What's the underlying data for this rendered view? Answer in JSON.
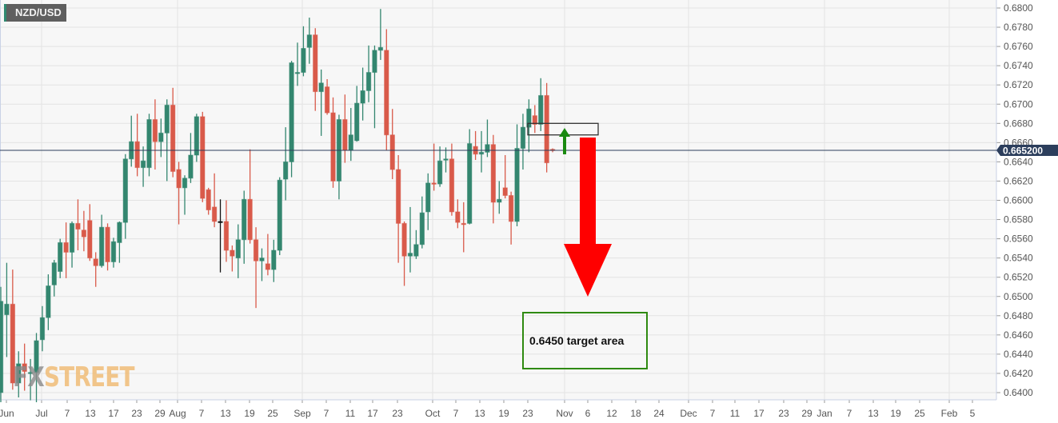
{
  "symbol": "NZD/USD",
  "current_price_label": "0.665200",
  "annotation_text": "0.6450 target area",
  "watermark": {
    "prefix": "FX",
    "suffix": "STREET"
  },
  "colors": {
    "up": "#33866f",
    "down": "#d95a4a",
    "doji": "#111111",
    "price_line": "#2c3e5c",
    "price_label_bg": "#2c3e5c",
    "zone_box": "#333333",
    "up_arrow": "#1a8a10",
    "down_arrow": "#ff0000",
    "target_box": "#2f8a10",
    "grid": "#e3e3e3",
    "plot_bg": "#f7f7f7"
  },
  "chart_data": {
    "type": "candlestick",
    "title": "NZD/USD",
    "timeframe_note": "",
    "ylim": [
      0.639,
      0.681
    ],
    "yticks": [
      "0.6400",
      "0.6420",
      "0.6440",
      "0.6460",
      "0.6480",
      "0.6500",
      "0.6520",
      "0.6540",
      "0.6560",
      "0.6580",
      "0.6600",
      "0.6620",
      "0.6640",
      "0.6660",
      "0.6680",
      "0.6700",
      "0.6720",
      "0.6740",
      "0.6760",
      "0.6780",
      "0.6800"
    ],
    "xticks": [
      "Jun",
      "Jul",
      "7",
      "13",
      "17",
      "23",
      "29",
      "Aug",
      "7",
      "13",
      "19",
      "25",
      "Sep",
      "7",
      "11",
      "17",
      "23",
      "Oct",
      "7",
      "13",
      "19",
      "23",
      "Nov",
      "6",
      "12",
      "18",
      "24",
      "Dec",
      "7",
      "11",
      "17",
      "23",
      "29",
      "Jan",
      "7",
      "13",
      "19",
      "25",
      "Feb",
      "5"
    ],
    "grid": true,
    "current_price": 0.6652,
    "ohlc": [
      [
        0.64,
        0.651,
        0.639,
        0.6495
      ],
      [
        0.6481,
        0.6535,
        0.6437,
        0.6492
      ],
      [
        0.6492,
        0.6528,
        0.6403,
        0.641
      ],
      [
        0.641,
        0.6443,
        0.6395,
        0.643
      ],
      [
        0.643,
        0.6451,
        0.6402,
        0.6422
      ],
      [
        0.642,
        0.6435,
        0.6392,
        0.6421
      ],
      [
        0.6421,
        0.6462,
        0.639,
        0.6454
      ],
      [
        0.6455,
        0.649,
        0.6443,
        0.6478
      ],
      [
        0.6478,
        0.6523,
        0.6465,
        0.6511
      ],
      [
        0.6512,
        0.6538,
        0.65,
        0.6535
      ],
      [
        0.6526,
        0.656,
        0.6519,
        0.6556
      ],
      [
        0.6556,
        0.6577,
        0.6519,
        0.6546
      ],
      [
        0.6546,
        0.6578,
        0.653,
        0.6576
      ],
      [
        0.6576,
        0.6601,
        0.6548,
        0.657
      ],
      [
        0.6569,
        0.6589,
        0.6547,
        0.6562
      ],
      [
        0.6579,
        0.6596,
        0.6537,
        0.654
      ],
      [
        0.6539,
        0.6546,
        0.651,
        0.6532
      ],
      [
        0.6532,
        0.6585,
        0.653,
        0.6572
      ],
      [
        0.6572,
        0.6576,
        0.6527,
        0.6536
      ],
      [
        0.6536,
        0.6561,
        0.653,
        0.6557
      ],
      [
        0.6556,
        0.6578,
        0.6535,
        0.6577
      ],
      [
        0.6577,
        0.6648,
        0.656,
        0.6643
      ],
      [
        0.6643,
        0.6688,
        0.6635,
        0.6661
      ],
      [
        0.6661,
        0.669,
        0.6625,
        0.6634
      ],
      [
        0.6634,
        0.6656,
        0.6614,
        0.6641
      ],
      [
        0.6634,
        0.669,
        0.6625,
        0.6684
      ],
      [
        0.6684,
        0.6705,
        0.6632,
        0.6661
      ],
      [
        0.6661,
        0.6685,
        0.6645,
        0.667
      ],
      [
        0.667,
        0.6705,
        0.662,
        0.6699
      ],
      [
        0.6699,
        0.6717,
        0.6624,
        0.663
      ],
      [
        0.6632,
        0.664,
        0.6575,
        0.6613
      ],
      [
        0.6613,
        0.6626,
        0.6585,
        0.6623
      ],
      [
        0.6623,
        0.667,
        0.6618,
        0.6647
      ],
      [
        0.6647,
        0.669,
        0.664,
        0.6687
      ],
      [
        0.6687,
        0.6692,
        0.6598,
        0.6602
      ],
      [
        0.6611,
        0.6613,
        0.6585,
        0.659
      ],
      [
        0.6593,
        0.6628,
        0.6572,
        0.6578
      ],
      [
        0.6578,
        0.6601,
        0.6525,
        0.6578
      ],
      [
        0.6578,
        0.66,
        0.6536,
        0.6548
      ],
      [
        0.6548,
        0.6553,
        0.6526,
        0.6542
      ],
      [
        0.654,
        0.6575,
        0.6519,
        0.6559
      ],
      [
        0.6559,
        0.661,
        0.6534,
        0.6601
      ],
      [
        0.6601,
        0.6653,
        0.6555,
        0.6559
      ],
      [
        0.6559,
        0.6572,
        0.6488,
        0.6537
      ],
      [
        0.6537,
        0.655,
        0.6516,
        0.654
      ],
      [
        0.6534,
        0.6565,
        0.6522,
        0.6528
      ],
      [
        0.6528,
        0.6559,
        0.6515,
        0.6548
      ],
      [
        0.6548,
        0.6624,
        0.6543,
        0.6621
      ],
      [
        0.6622,
        0.6676,
        0.66,
        0.664
      ],
      [
        0.664,
        0.6745,
        0.6624,
        0.6743
      ],
      [
        0.6732,
        0.6764,
        0.6719,
        0.6733
      ],
      [
        0.6733,
        0.6781,
        0.6729,
        0.6758
      ],
      [
        0.6759,
        0.679,
        0.6742,
        0.6772
      ],
      [
        0.6772,
        0.6779,
        0.6693,
        0.6713
      ],
      [
        0.6713,
        0.6736,
        0.6667,
        0.6722
      ],
      [
        0.6718,
        0.6726,
        0.6689,
        0.6691
      ],
      [
        0.6691,
        0.6707,
        0.6613,
        0.662
      ],
      [
        0.662,
        0.6689,
        0.6601,
        0.6684
      ],
      [
        0.6684,
        0.671,
        0.6639,
        0.6652
      ],
      [
        0.6652,
        0.6696,
        0.6641,
        0.6668
      ],
      [
        0.6662,
        0.6719,
        0.6661,
        0.6701
      ],
      [
        0.6701,
        0.6738,
        0.6683,
        0.6714
      ],
      [
        0.6714,
        0.6761,
        0.6702,
        0.6733
      ],
      [
        0.6733,
        0.6761,
        0.6675,
        0.6756
      ],
      [
        0.6756,
        0.6799,
        0.6746,
        0.6759
      ],
      [
        0.6756,
        0.6778,
        0.6652,
        0.6668
      ],
      [
        0.6668,
        0.6695,
        0.6622,
        0.6632
      ],
      [
        0.6632,
        0.6647,
        0.6535,
        0.6576
      ],
      [
        0.6576,
        0.6578,
        0.6511,
        0.6542
      ],
      [
        0.6542,
        0.6593,
        0.6525,
        0.6545
      ],
      [
        0.6542,
        0.6569,
        0.6539,
        0.6554
      ],
      [
        0.6554,
        0.6604,
        0.655,
        0.6587
      ],
      [
        0.6588,
        0.6628,
        0.6569,
        0.6618
      ],
      [
        0.6618,
        0.6659,
        0.661,
        0.6617
      ],
      [
        0.6617,
        0.6656,
        0.6614,
        0.6641
      ],
      [
        0.6642,
        0.6655,
        0.6629,
        0.6643
      ],
      [
        0.6643,
        0.6659,
        0.6584,
        0.6588
      ],
      [
        0.6588,
        0.6601,
        0.6571,
        0.6577
      ],
      [
        0.6576,
        0.6598,
        0.6546,
        0.6575
      ],
      [
        0.6576,
        0.6674,
        0.6575,
        0.6659
      ],
      [
        0.6656,
        0.6672,
        0.6642,
        0.6648
      ],
      [
        0.6648,
        0.6672,
        0.6629,
        0.665
      ],
      [
        0.665,
        0.6684,
        0.6645,
        0.6658
      ],
      [
        0.6658,
        0.6668,
        0.6576,
        0.6598
      ],
      [
        0.6598,
        0.662,
        0.6586,
        0.6601
      ],
      [
        0.6613,
        0.6647,
        0.6602,
        0.6605
      ],
      [
        0.6605,
        0.6609,
        0.6554,
        0.6578
      ],
      [
        0.6578,
        0.6679,
        0.6573,
        0.6654
      ],
      [
        0.6654,
        0.669,
        0.6632,
        0.6676
      ],
      [
        0.6676,
        0.6705,
        0.665,
        0.6695
      ],
      [
        0.6688,
        0.6699,
        0.667,
        0.6679
      ],
      [
        0.6679,
        0.6727,
        0.6672,
        0.6709
      ],
      [
        0.6709,
        0.6722,
        0.6629,
        0.6639
      ],
      [
        0.6653,
        0.6654,
        0.665,
        0.6652
      ]
    ],
    "doji_black_index": 37,
    "resistance_zone": [
      0.6668,
      0.668
    ],
    "target": 0.645
  }
}
